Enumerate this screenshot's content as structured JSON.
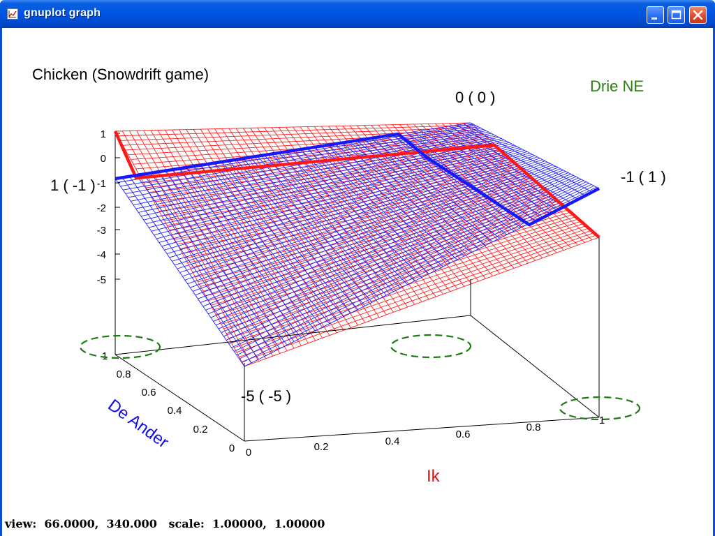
{
  "window": {
    "title": "gnuplot graph"
  },
  "plot": {
    "title": "Chicken (Snowdrift game)",
    "legend_note": "Drie NE",
    "legend_note_color": "#2e7d12",
    "corner_labels": {
      "back_left": "1 ( -1 )",
      "back_right": "0 ( 0 )",
      "front_right": "-1 ( 1 )",
      "front_left": "-5 ( -5 )"
    },
    "xlabel": "Ik",
    "xlabel_color": "#e01010",
    "ylabel": "De Ander",
    "ylabel_color": "#1010e0",
    "z_ticks": [
      "1",
      "0",
      "-1",
      "-2",
      "-3",
      "-4",
      "-5"
    ],
    "x_ticks": [
      "0",
      "0.2",
      "0.4",
      "0.6",
      "0.8",
      "1"
    ],
    "y_ticks": [
      "0",
      "0.2",
      "0.4",
      "0.6",
      "0.8",
      "1"
    ],
    "surface_colors": {
      "red": "#ff2020",
      "blue": "#2020ff"
    }
  },
  "statusbar": {
    "text": "view:  66.0000,  340.000   scale:  1.00000,  1.00000"
  }
}
